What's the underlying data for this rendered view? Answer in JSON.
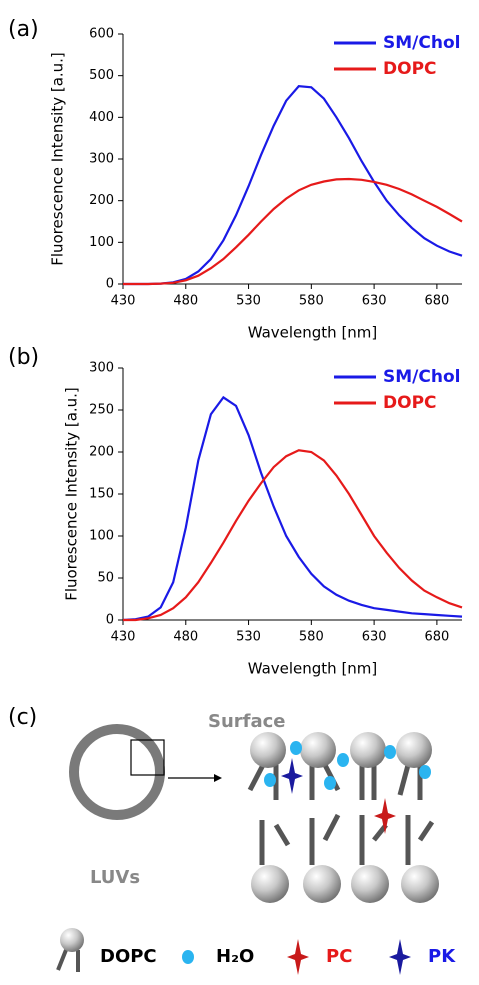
{
  "chart_data": [
    {
      "type": "line",
      "panel_label": "(a)",
      "x_label": "Wavelength [nm]",
      "y_label": "Fluorescence Intensity [a.u.]",
      "x": [
        430,
        440,
        450,
        460,
        470,
        480,
        490,
        500,
        510,
        520,
        530,
        540,
        550,
        560,
        570,
        580,
        590,
        600,
        610,
        620,
        630,
        640,
        650,
        660,
        670,
        680,
        690,
        700
      ],
      "xlim": [
        430,
        700
      ],
      "xticks": [
        430,
        480,
        530,
        580,
        630,
        680
      ],
      "ylim": [
        0,
        600
      ],
      "yticks": [
        0,
        100,
        200,
        300,
        400,
        500,
        600
      ],
      "legend": "upper right",
      "series": [
        {
          "name": "SM/Chol",
          "color": "#1a1ae6",
          "values": [
            0,
            0,
            0,
            1,
            4,
            12,
            30,
            60,
            105,
            165,
            235,
            310,
            380,
            440,
            475,
            472,
            445,
            400,
            350,
            295,
            245,
            200,
            165,
            135,
            110,
            92,
            78,
            68
          ]
        },
        {
          "name": "DOPC",
          "color": "#e61a1a",
          "values": [
            0,
            0,
            0,
            1,
            3,
            9,
            20,
            38,
            60,
            88,
            118,
            150,
            180,
            205,
            225,
            238,
            246,
            251,
            252,
            250,
            245,
            238,
            228,
            215,
            200,
            185,
            168,
            150
          ]
        }
      ]
    },
    {
      "type": "line",
      "panel_label": "(b)",
      "x_label": "Wavelength [nm]",
      "y_label": "Fluorescence Intensity  [a.u.]",
      "x": [
        430,
        440,
        450,
        460,
        470,
        480,
        490,
        500,
        510,
        520,
        530,
        540,
        550,
        560,
        570,
        580,
        590,
        600,
        610,
        620,
        630,
        640,
        650,
        660,
        670,
        680,
        690,
        700
      ],
      "xlim": [
        430,
        700
      ],
      "xticks": [
        430,
        480,
        530,
        580,
        630,
        680
      ],
      "ylim": [
        0,
        300
      ],
      "yticks": [
        0,
        50,
        100,
        150,
        200,
        250,
        300
      ],
      "legend": "upper right",
      "series": [
        {
          "name": "SM/Chol",
          "color": "#1a1ae6",
          "values": [
            0,
            1,
            4,
            15,
            45,
            110,
            190,
            245,
            265,
            255,
            220,
            175,
            135,
            100,
            75,
            55,
            40,
            30,
            23,
            18,
            14,
            12,
            10,
            8,
            7,
            6,
            5,
            4
          ]
        },
        {
          "name": "DOPC",
          "color": "#e61a1a",
          "values": [
            0,
            0,
            2,
            6,
            14,
            27,
            45,
            68,
            92,
            118,
            142,
            163,
            182,
            195,
            202,
            200,
            190,
            172,
            150,
            125,
            100,
            80,
            62,
            47,
            35,
            27,
            20,
            15
          ]
        }
      ]
    }
  ],
  "diagram": {
    "panel_label": "(c)",
    "surface": "Surface",
    "vesicle": "LUVs",
    "legend": {
      "lipid": "DOPC",
      "water": "H₂O",
      "pc": "PC",
      "pk": "PK"
    }
  }
}
